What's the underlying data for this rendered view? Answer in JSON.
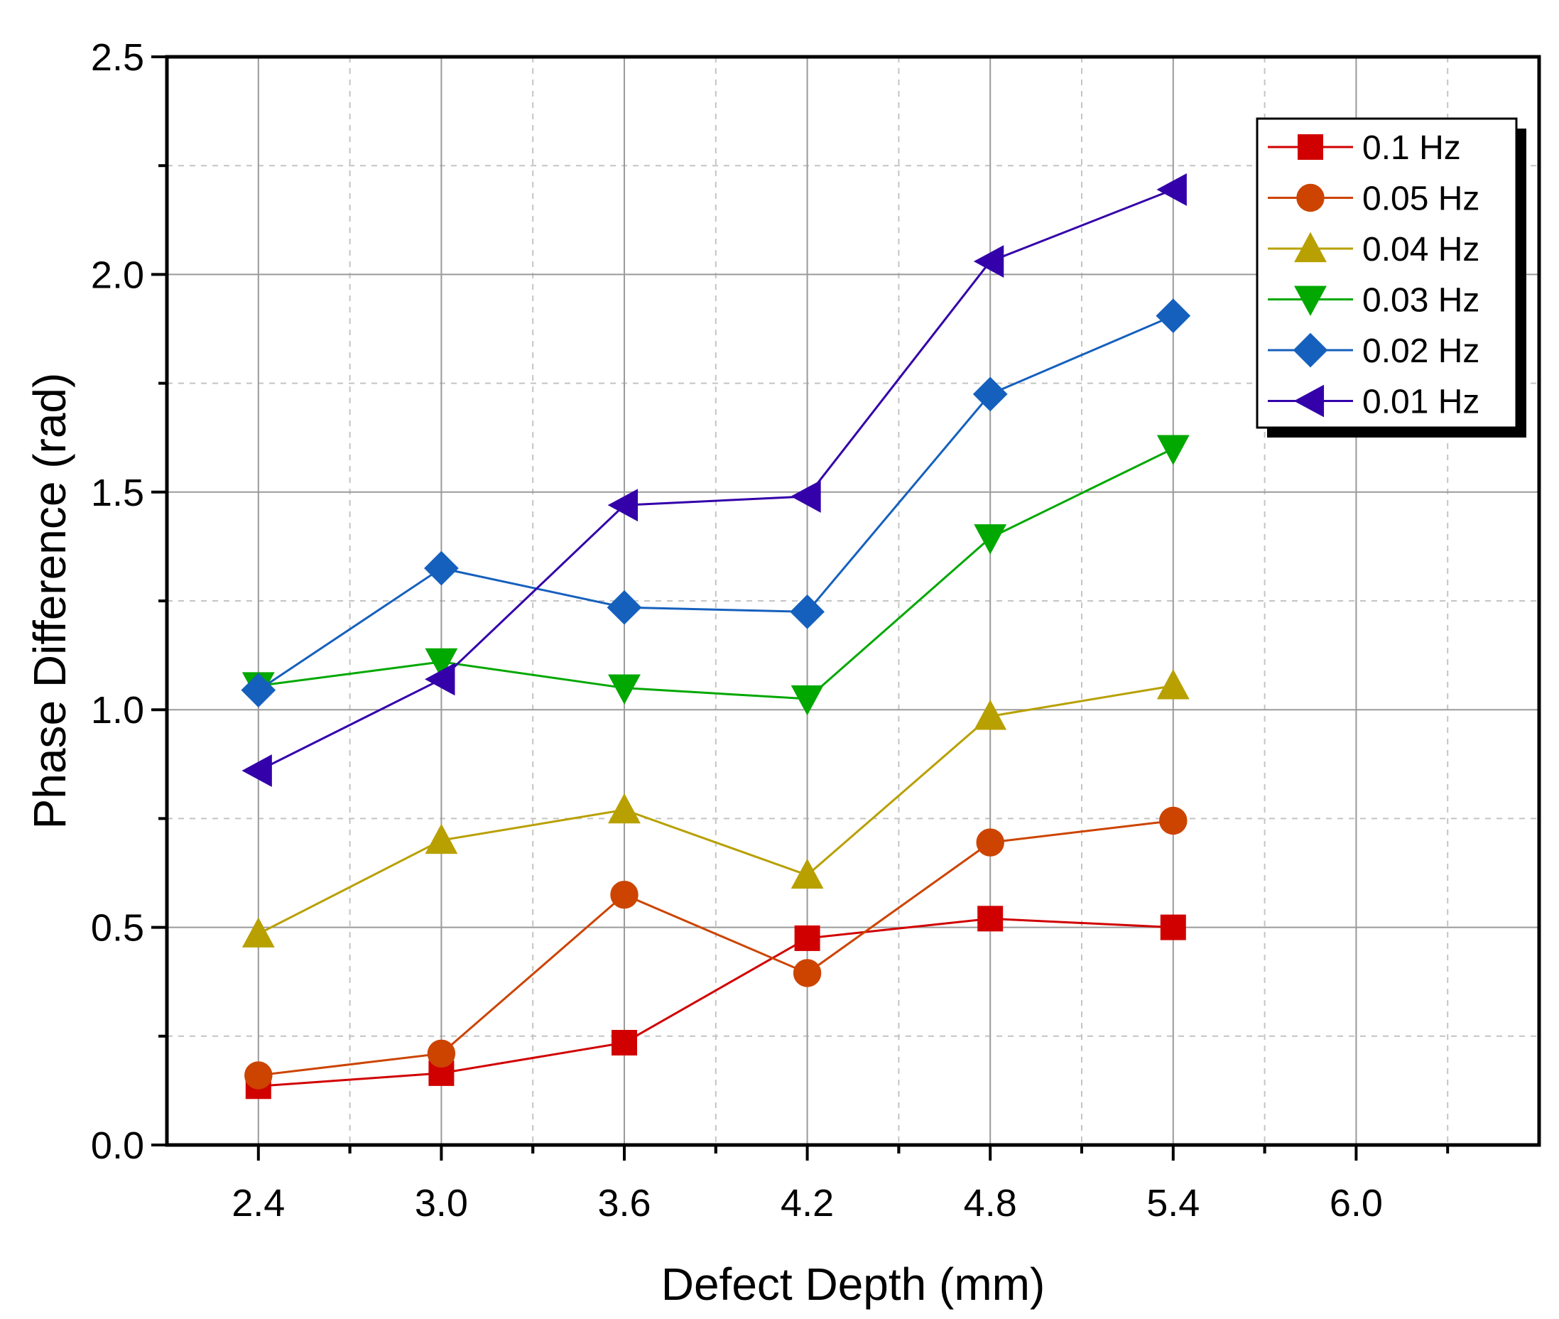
{
  "chart_data": {
    "type": "line",
    "title": "",
    "xlabel": "Defect Depth (mm)",
    "ylabel": "Phase Difference (rad)",
    "xlim": [
      2.1,
      6.6
    ],
    "ylim": [
      0.0,
      2.5
    ],
    "xticks": [
      "2.4",
      "3.0",
      "3.6",
      "4.2",
      "4.8",
      "5.4",
      "6.0"
    ],
    "yticks": [
      "0.0",
      "0.5",
      "1.0",
      "1.5",
      "2.0",
      "2.5"
    ],
    "grid": true,
    "legend_position": "top-right",
    "x": [
      2.4,
      3.0,
      3.6,
      4.2,
      4.8,
      5.4
    ],
    "series": [
      {
        "name": "0.1 Hz",
        "color": "#d10000",
        "marker": "square",
        "values": [
          0.135,
          0.165,
          0.235,
          0.475,
          0.52,
          0.5
        ]
      },
      {
        "name": "0.05 Hz",
        "color": "#cc4400",
        "marker": "circle",
        "values": [
          0.16,
          0.21,
          0.575,
          0.395,
          0.695,
          0.745
        ]
      },
      {
        "name": "0.04 Hz",
        "color": "#b8a000",
        "marker": "triangle-up",
        "values": [
          0.485,
          0.7,
          0.77,
          0.62,
          0.985,
          1.055
        ]
      },
      {
        "name": "0.03 Hz",
        "color": "#00a800",
        "marker": "triangle-down",
        "values": [
          1.055,
          1.11,
          1.05,
          1.025,
          1.395,
          1.6
        ]
      },
      {
        "name": "0.02 Hz",
        "color": "#1560bd",
        "marker": "diamond",
        "values": [
          1.045,
          1.325,
          1.235,
          1.225,
          1.725,
          1.905
        ]
      },
      {
        "name": "0.01 Hz",
        "color": "#3300aa",
        "marker": "triangle-left",
        "values": [
          0.86,
          1.07,
          1.47,
          1.49,
          2.03,
          2.195
        ]
      }
    ]
  }
}
